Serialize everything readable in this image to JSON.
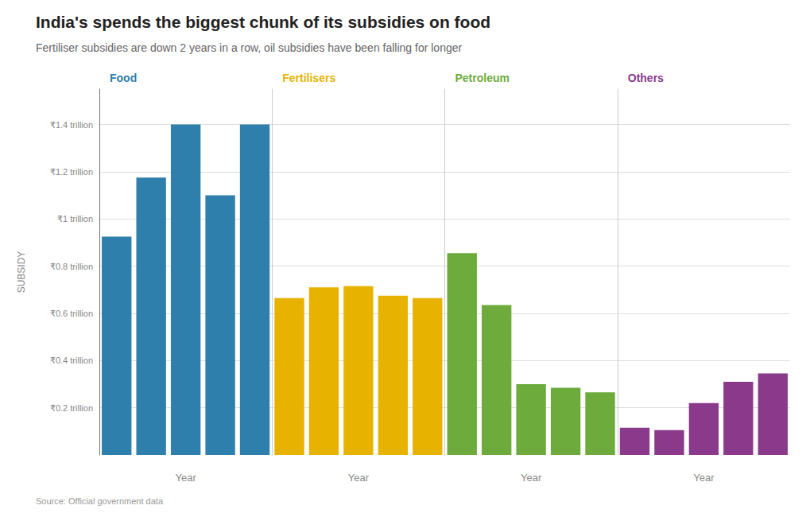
{
  "chart_data": {
    "type": "bar",
    "title": "India's spends the biggest chunk of its subsidies on food",
    "subtitle": "Fertiliser subsidies are down 2 years in a row, oil subsidies have been falling for longer",
    "source": "Source: Official government data",
    "ylabel": "SUBSIDY",
    "xlabel": "Year",
    "categories": [
      null,
      null,
      null,
      null,
      null
    ],
    "series": [
      {
        "name": "Food",
        "color": "#2e7fab",
        "values": [
          0.925,
          1.175,
          1.4,
          1.1,
          1.4
        ]
      },
      {
        "name": "Fertilisers",
        "color": "#e8b300",
        "values": [
          0.665,
          0.71,
          0.715,
          0.675,
          0.665
        ]
      },
      {
        "name": "Petroleum",
        "color": "#6dab3c",
        "values": [
          0.855,
          0.635,
          0.3,
          0.285,
          0.265
        ]
      },
      {
        "name": "Others",
        "color": "#8b3a8b",
        "values": [
          0.115,
          0.105,
          0.22,
          0.31,
          0.345
        ]
      }
    ],
    "ylim": [
      0,
      1.55
    ],
    "yticks": [
      {
        "value": 0.2,
        "label": "₹0.2 trillion"
      },
      {
        "value": 0.4,
        "label": "₹0.4 trillion"
      },
      {
        "value": 0.6,
        "label": "₹0.6 trillion"
      },
      {
        "value": 0.8,
        "label": "₹0.8 trillion"
      },
      {
        "value": 1.0,
        "label": "₹1 trillion"
      },
      {
        "value": 1.2,
        "label": "₹1.2 trillion"
      },
      {
        "value": 1.4,
        "label": "₹1.4 trillion"
      }
    ],
    "grid": true,
    "tick_labels": "y"
  }
}
